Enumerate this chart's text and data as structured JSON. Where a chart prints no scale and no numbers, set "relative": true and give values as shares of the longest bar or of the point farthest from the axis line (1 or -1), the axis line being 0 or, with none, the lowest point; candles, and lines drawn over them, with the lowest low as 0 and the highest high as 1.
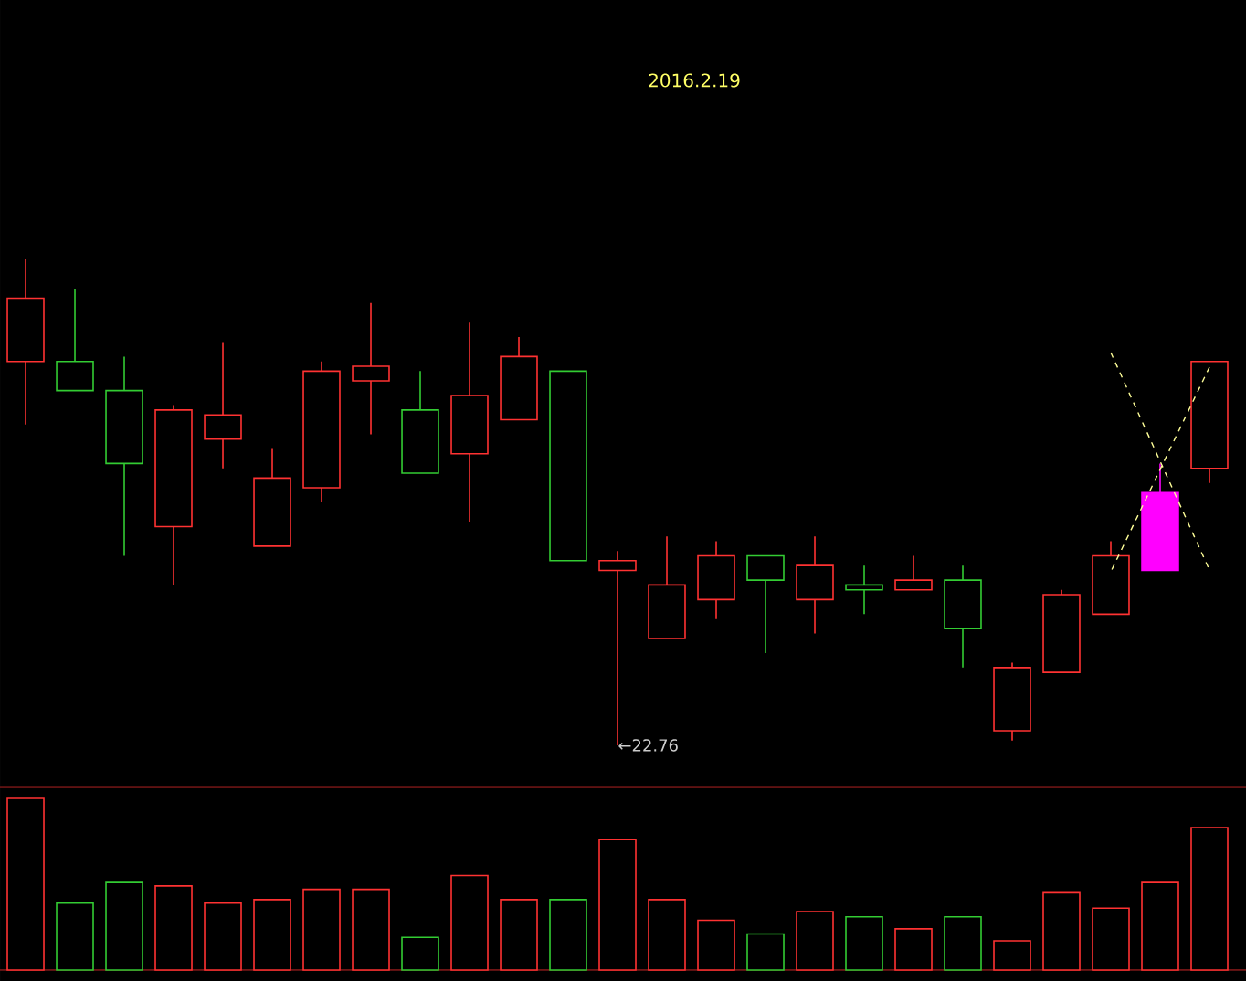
{
  "chart_data": [
    {
      "type": "candlestick",
      "title": "2016.2.19",
      "relative": true,
      "categories": [
        null,
        null,
        null,
        null,
        null,
        null,
        null,
        null,
        null,
        null,
        null,
        null,
        null,
        null,
        null,
        null,
        null,
        null,
        null,
        null,
        null,
        null,
        null,
        null,
        null
      ],
      "ohlc": [
        [
          0.79,
          1.0,
          0.66,
          0.92
        ],
        [
          0.79,
          0.94,
          0.73,
          0.73
        ],
        [
          0.73,
          0.8,
          0.39,
          0.58
        ],
        [
          0.45,
          0.7,
          0.33,
          0.69
        ],
        [
          0.63,
          0.83,
          0.57,
          0.68
        ],
        [
          0.41,
          0.61,
          0.41,
          0.55
        ],
        [
          0.53,
          0.79,
          0.5,
          0.77
        ],
        [
          0.75,
          0.91,
          0.64,
          0.78
        ],
        [
          0.69,
          0.77,
          0.56,
          0.56
        ],
        [
          0.6,
          0.87,
          0.46,
          0.72
        ],
        [
          0.67,
          0.84,
          0.67,
          0.8
        ],
        [
          0.77,
          0.77,
          0.38,
          0.38
        ],
        [
          0.36,
          0.4,
          0,
          0.38
        ],
        [
          0.22,
          0.43,
          0.22,
          0.33
        ],
        [
          0.3,
          0.42,
          0.26,
          0.39
        ],
        [
          0.39,
          0.39,
          0.19,
          0.34
        ],
        [
          0.3,
          0.43,
          0.23,
          0.37
        ],
        [
          0.33,
          0.37,
          0.27,
          0.32
        ],
        [
          0.32,
          0.39,
          0.32,
          0.34
        ],
        [
          0.34,
          0.37,
          0.16,
          0.24
        ],
        [
          0.03,
          0.17,
          0.01,
          0.16
        ],
        [
          0.15,
          0.32,
          0.15,
          0.31
        ],
        [
          0.27,
          0.42,
          0.27,
          0.39
        ],
        [
          0.36,
          0.58,
          0.36,
          0.52
        ],
        [
          0.57,
          0.79,
          0.54,
          0.79
        ]
      ],
      "colors": [
        "#ff3232",
        "#33cc33",
        "#33cc33",
        "#ff3232",
        "#ff3232",
        "#ff3232",
        "#ff3232",
        "#ff3232",
        "#33cc33",
        "#ff3232",
        "#ff3232",
        "#33cc33",
        "#ff3232",
        "#ff3232",
        "#ff3232",
        "#33cc33",
        "#ff3232",
        "#33cc33",
        "#ff3232",
        "#33cc33",
        "#ff3232",
        "#ff3232",
        "#ff3232",
        "#ff00ff",
        "#ff3232"
      ],
      "annotations": [
        "←22.76"
      ]
    },
    {
      "type": "bar",
      "relative": true,
      "categories": [
        null,
        null,
        null,
        null,
        null,
        null,
        null,
        null,
        null,
        null,
        null,
        null,
        null,
        null,
        null,
        null,
        null,
        null,
        null,
        null,
        null,
        null,
        null,
        null,
        null
      ],
      "values": [
        1.0,
        0.39,
        0.51,
        0.49,
        0.39,
        0.41,
        0.47,
        0.47,
        0.19,
        0.55,
        0.41,
        0.41,
        0.76,
        0.41,
        0.29,
        0.21,
        0.34,
        0.31,
        0.24,
        0.31,
        0.17,
        0.45,
        0.36,
        0.51,
        0.83
      ],
      "colors": [
        "#ff3232",
        "#33cc33",
        "#33cc33",
        "#ff3232",
        "#ff3232",
        "#ff3232",
        "#ff3232",
        "#ff3232",
        "#33cc33",
        "#ff3232",
        "#ff3232",
        "#33cc33",
        "#ff3232",
        "#ff3232",
        "#ff3232",
        "#33cc33",
        "#ff3232",
        "#33cc33",
        "#ff3232",
        "#33cc33",
        "#ff3232",
        "#ff3232",
        "#ff3232",
        "#ff3232",
        "#ff3232"
      ]
    }
  ]
}
